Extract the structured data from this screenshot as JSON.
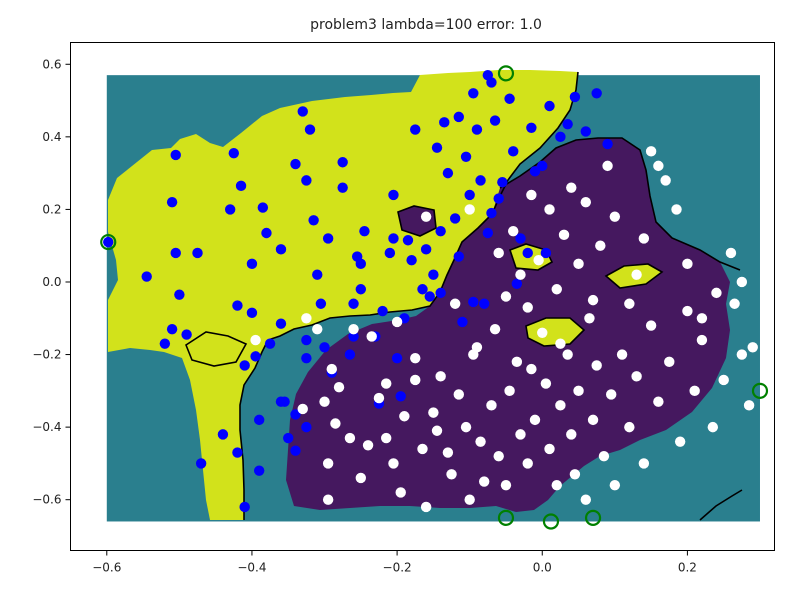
{
  "chart_data": {
    "type": "scatter",
    "title": "problem3 lambda=100 error: 1.0",
    "xlabel": "",
    "ylabel": "",
    "xlim": [
      -0.65,
      0.32
    ],
    "ylim": [
      -0.74,
      0.66
    ],
    "xticks": [
      -0.6,
      -0.4,
      -0.2,
      0.0,
      0.2
    ],
    "xtick_labels": [
      "−0.6",
      "−0.4",
      "−0.2",
      "0.0",
      "0.2"
    ],
    "yticks": [
      0.6,
      0.4,
      0.2,
      0.0,
      -0.2,
      -0.4,
      -0.6
    ],
    "ytick_labels": [
      "0.6",
      "0.4",
      "0.2",
      "0.0",
      "−0.2",
      "−0.4",
      "−0.6"
    ],
    "grid": false,
    "legend": false,
    "colors": {
      "background_field": "#2a7f8e",
      "positive_region": "#d2e21b",
      "negative_region": "#45185f",
      "blue_points": "#0000ff",
      "white_points": "#ffffff",
      "support_vectors": "#008000",
      "contour": "#000000"
    },
    "decision_field": {
      "x_range": [
        -0.6,
        0.3
      ],
      "y_range": [
        -0.66,
        0.57
      ]
    },
    "series": [
      {
        "marker": "blue",
        "points": [
          [
            -0.598,
            0.11
          ],
          [
            -0.545,
            0.015
          ],
          [
            -0.52,
            -0.17
          ],
          [
            -0.505,
            0.35
          ],
          [
            -0.51,
            0.22
          ],
          [
            -0.505,
            0.08
          ],
          [
            -0.51,
            -0.13
          ],
          [
            -0.5,
            -0.035
          ],
          [
            -0.49,
            -0.145
          ],
          [
            -0.475,
            0.08
          ],
          [
            -0.47,
            -0.5
          ],
          [
            -0.44,
            -0.42
          ],
          [
            -0.43,
            0.2
          ],
          [
            -0.425,
            0.355
          ],
          [
            -0.42,
            -0.065
          ],
          [
            -0.42,
            -0.47
          ],
          [
            -0.415,
            0.265
          ],
          [
            -0.41,
            -0.23
          ],
          [
            -0.41,
            -0.62
          ],
          [
            -0.4,
            0.05
          ],
          [
            -0.4,
            -0.085
          ],
          [
            -0.395,
            -0.205
          ],
          [
            -0.39,
            -0.52
          ],
          [
            -0.385,
            0.205
          ],
          [
            -0.38,
            0.135
          ],
          [
            -0.375,
            -0.17
          ],
          [
            -0.36,
            0.09
          ],
          [
            -0.36,
            -0.115
          ],
          [
            -0.355,
            -0.33
          ],
          [
            -0.35,
            -0.43
          ],
          [
            -0.34,
            0.325
          ],
          [
            -0.34,
            -0.365
          ],
          [
            -0.33,
            0.47
          ],
          [
            -0.325,
            0.28
          ],
          [
            -0.325,
            -0.16
          ],
          [
            -0.325,
            -0.21
          ],
          [
            -0.325,
            -0.4
          ],
          [
            -0.32,
            0.42
          ],
          [
            -0.315,
            0.17
          ],
          [
            -0.31,
            0.02
          ],
          [
            -0.305,
            -0.06
          ],
          [
            -0.3,
            -0.18
          ],
          [
            -0.295,
            0.12
          ],
          [
            -0.29,
            -0.25
          ],
          [
            -0.275,
            0.33
          ],
          [
            -0.275,
            0.26
          ],
          [
            -0.265,
            -0.2
          ],
          [
            -0.26,
            -0.15
          ],
          [
            -0.255,
            0.07
          ],
          [
            -0.245,
            0.14
          ],
          [
            -0.23,
            -0.15
          ],
          [
            -0.225,
            -0.335
          ],
          [
            -0.22,
            -0.08
          ],
          [
            -0.21,
            0.08
          ],
          [
            -0.205,
            0.24
          ],
          [
            -0.205,
            0.12
          ],
          [
            -0.2,
            -0.21
          ],
          [
            -0.195,
            -0.315
          ],
          [
            -0.19,
            -0.1
          ],
          [
            -0.185,
            0.115
          ],
          [
            -0.18,
            0.06
          ],
          [
            -0.175,
            0.42
          ],
          [
            -0.165,
            -0.02
          ],
          [
            -0.16,
            0.09
          ],
          [
            -0.155,
            -0.04
          ],
          [
            -0.15,
            0.02
          ],
          [
            -0.14,
            -0.03
          ],
          [
            -0.135,
            0.44
          ],
          [
            -0.13,
            0.3
          ],
          [
            -0.12,
            0.175
          ],
          [
            -0.115,
            0.07
          ],
          [
            -0.11,
            -0.11
          ],
          [
            -0.105,
            0.345
          ],
          [
            -0.1,
            0.24
          ],
          [
            -0.095,
            -0.055
          ],
          [
            -0.09,
            0.42
          ],
          [
            -0.085,
            0.28
          ],
          [
            -0.08,
            -0.06
          ],
          [
            -0.075,
            0.135
          ],
          [
            -0.07,
            0.19
          ],
          [
            -0.065,
            0.445
          ],
          [
            -0.06,
            0.23
          ],
          [
            -0.055,
            0.275
          ],
          [
            -0.045,
            0.505
          ],
          [
            -0.04,
            0.36
          ],
          [
            -0.035,
            -0.005
          ],
          [
            -0.03,
            0.12
          ],
          [
            -0.02,
            0.08
          ],
          [
            -0.015,
            0.425
          ],
          [
            -0.01,
            0.305
          ],
          [
            0.0,
            0.32
          ],
          [
            0.005,
            0.08
          ],
          [
            0.01,
            0.485
          ],
          [
            0.025,
            0.4
          ],
          [
            0.035,
            0.435
          ],
          [
            0.045,
            0.51
          ],
          [
            0.06,
            0.415
          ],
          [
            0.075,
            0.52
          ],
          [
            0.09,
            0.38
          ],
          [
            -0.07,
            0.55
          ],
          [
            -0.075,
            0.57
          ],
          [
            -0.095,
            0.52
          ],
          [
            -0.115,
            0.455
          ],
          [
            -0.145,
            0.37
          ],
          [
            -0.14,
            0.14
          ],
          [
            -0.25,
            0.05
          ],
          [
            -0.25,
            -0.02
          ],
          [
            -0.26,
            -0.06
          ],
          [
            -0.36,
            -0.33
          ],
          [
            -0.39,
            -0.38
          ],
          [
            -0.34,
            -0.465
          ]
        ]
      },
      {
        "marker": "white",
        "points": [
          [
            -0.395,
            -0.16
          ],
          [
            -0.33,
            -0.35
          ],
          [
            -0.325,
            -0.1
          ],
          [
            -0.3,
            -0.33
          ],
          [
            -0.295,
            -0.5
          ],
          [
            -0.295,
            -0.6
          ],
          [
            -0.285,
            -0.39
          ],
          [
            -0.28,
            -0.29
          ],
          [
            -0.265,
            -0.43
          ],
          [
            -0.25,
            -0.54
          ],
          [
            -0.24,
            -0.45
          ],
          [
            -0.235,
            -0.15
          ],
          [
            -0.225,
            -0.32
          ],
          [
            -0.215,
            -0.43
          ],
          [
            -0.205,
            -0.5
          ],
          [
            -0.195,
            -0.58
          ],
          [
            -0.19,
            -0.37
          ],
          [
            -0.175,
            -0.27
          ],
          [
            -0.165,
            -0.46
          ],
          [
            -0.16,
            -0.62
          ],
          [
            -0.15,
            -0.36
          ],
          [
            -0.14,
            -0.26
          ],
          [
            -0.13,
            -0.47
          ],
          [
            -0.125,
            -0.53
          ],
          [
            -0.115,
            -0.31
          ],
          [
            -0.105,
            -0.4
          ],
          [
            -0.1,
            -0.6
          ],
          [
            -0.095,
            -0.2
          ],
          [
            -0.085,
            -0.44
          ],
          [
            -0.08,
            -0.55
          ],
          [
            -0.07,
            -0.34
          ],
          [
            -0.065,
            -0.13
          ],
          [
            -0.06,
            -0.48
          ],
          [
            -0.05,
            -0.56
          ],
          [
            -0.045,
            -0.3
          ],
          [
            -0.035,
            -0.22
          ],
          [
            -0.03,
            -0.42
          ],
          [
            -0.02,
            -0.5
          ],
          [
            -0.01,
            -0.38
          ],
          [
            0.0,
            -0.14
          ],
          [
            0.005,
            -0.28
          ],
          [
            0.01,
            -0.46
          ],
          [
            0.02,
            -0.56
          ],
          [
            0.025,
            -0.34
          ],
          [
            0.035,
            -0.2
          ],
          [
            0.04,
            -0.42
          ],
          [
            0.045,
            -0.53
          ],
          [
            0.05,
            -0.3
          ],
          [
            0.06,
            -0.6
          ],
          [
            0.065,
            -0.1
          ],
          [
            0.07,
            -0.38
          ],
          [
            0.075,
            -0.23
          ],
          [
            0.085,
            -0.48
          ],
          [
            0.095,
            -0.31
          ],
          [
            0.1,
            -0.56
          ],
          [
            0.11,
            -0.2
          ],
          [
            0.12,
            -0.4
          ],
          [
            0.13,
            -0.26
          ],
          [
            0.14,
            -0.5
          ],
          [
            0.15,
            -0.12
          ],
          [
            0.16,
            -0.33
          ],
          [
            0.175,
            -0.22
          ],
          [
            0.19,
            -0.44
          ],
          [
            0.2,
            -0.08
          ],
          [
            0.21,
            -0.3
          ],
          [
            0.22,
            -0.16
          ],
          [
            0.235,
            -0.4
          ],
          [
            0.25,
            -0.27
          ],
          [
            0.265,
            -0.06
          ],
          [
            0.275,
            -0.2
          ],
          [
            0.285,
            -0.34
          ],
          [
            0.29,
            -0.18
          ],
          [
            0.275,
            0.0
          ],
          [
            0.26,
            0.08
          ],
          [
            0.24,
            -0.03
          ],
          [
            0.22,
            -0.1
          ],
          [
            0.2,
            0.05
          ],
          [
            0.185,
            0.2
          ],
          [
            0.17,
            0.28
          ],
          [
            0.16,
            0.32
          ],
          [
            0.15,
            0.36
          ],
          [
            0.14,
            0.12
          ],
          [
            0.13,
            0.02
          ],
          [
            0.12,
            -0.06
          ],
          [
            0.1,
            0.18
          ],
          [
            0.09,
            0.32
          ],
          [
            0.08,
            0.1
          ],
          [
            0.07,
            -0.05
          ],
          [
            0.06,
            0.22
          ],
          [
            0.05,
            0.05
          ],
          [
            0.04,
            0.26
          ],
          [
            0.03,
            0.13
          ],
          [
            0.02,
            -0.02
          ],
          [
            0.01,
            0.2
          ],
          [
            -0.005,
            0.06
          ],
          [
            -0.015,
            0.24
          ],
          [
            -0.02,
            -0.07
          ],
          [
            -0.03,
            0.02
          ],
          [
            -0.04,
            0.14
          ],
          [
            -0.05,
            -0.04
          ],
          [
            -0.06,
            0.08
          ],
          [
            -0.1,
            0.2
          ],
          [
            -0.12,
            -0.06
          ],
          [
            -0.16,
            0.18
          ],
          [
            -0.2,
            -0.11
          ],
          [
            -0.26,
            -0.13
          ],
          [
            -0.29,
            -0.24
          ],
          [
            -0.31,
            -0.13
          ],
          [
            -0.215,
            -0.28
          ],
          [
            -0.175,
            -0.21
          ],
          [
            -0.145,
            -0.41
          ],
          [
            -0.09,
            -0.18
          ],
          [
            -0.015,
            -0.24
          ],
          [
            0.025,
            -0.17
          ]
        ]
      },
      {
        "marker": "green-ring",
        "points": [
          [
            -0.598,
            0.11
          ],
          [
            -0.05,
            0.575
          ],
          [
            0.3,
            -0.3
          ],
          [
            -0.05,
            -0.65
          ],
          [
            0.012,
            -0.66
          ],
          [
            0.07,
            -0.65
          ]
        ]
      }
    ]
  }
}
